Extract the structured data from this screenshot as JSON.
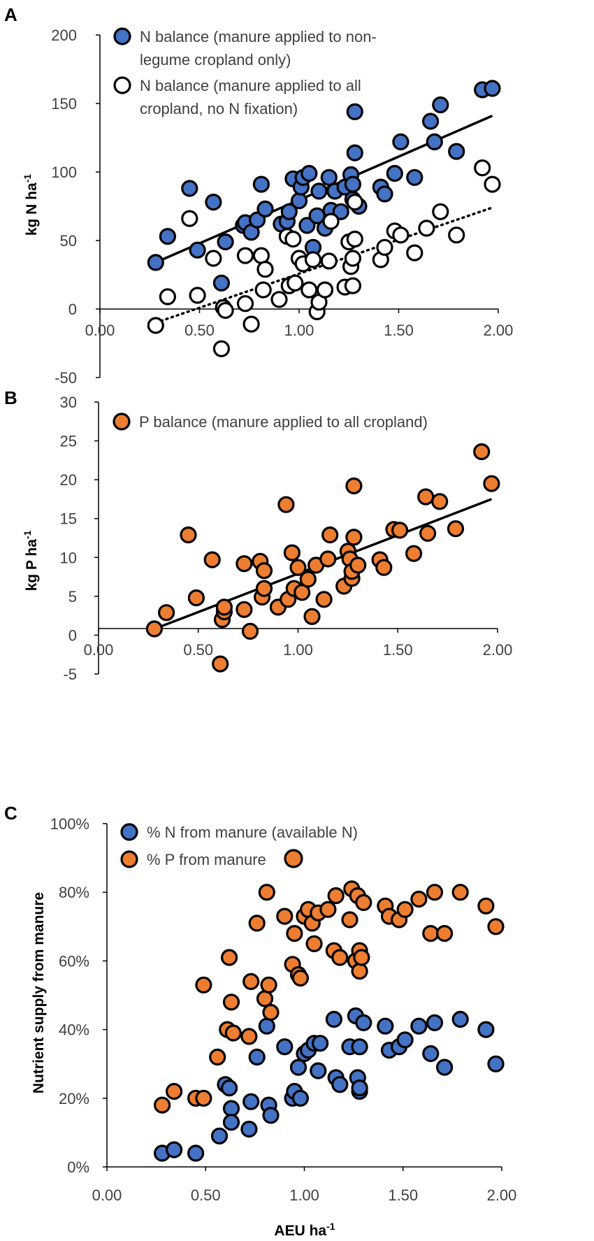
{
  "colors": {
    "n_blue": "#4472c4",
    "p_orange": "#ed7d31",
    "open_fill": "#ffffff",
    "marker_edge": "#000000",
    "trend": "#000000",
    "axis": "#000000"
  },
  "chart_data": [
    {
      "panel": "A",
      "type": "scatter",
      "title": "",
      "xlabel": "",
      "ylabel_main": "kg N ha",
      "ylabel_sup": "-1",
      "xlim": [
        0,
        2
      ],
      "ylim": [
        -50,
        200
      ],
      "yticks": [
        "200",
        "150",
        "100",
        "50",
        "0",
        "-50"
      ],
      "xticks": [
        "0.00",
        "0.50",
        "1.00",
        "1.50",
        "2.00"
      ],
      "legend": [
        {
          "lines": [
            "N balance (manure applied to non-",
            "legume cropland only)"
          ],
          "style": "filled-blue"
        },
        {
          "lines": [
            "N balance (manure applied to all",
            "cropland, no N fixation)"
          ],
          "style": "open"
        }
      ],
      "series": [
        {
          "name": "N balance (manure applied to non-legume cropland only)",
          "style": "filled-blue",
          "trendline": {
            "kind": "solid",
            "x": [
              0.28,
              1.97
            ],
            "y": [
              34,
              141
            ]
          },
          "points": [
            [
              0.28,
              34
            ],
            [
              0.34,
              53
            ],
            [
              0.45,
              88
            ],
            [
              0.49,
              43
            ],
            [
              0.57,
              78
            ],
            [
              0.61,
              19
            ],
            [
              0.63,
              49
            ],
            [
              0.72,
              61
            ],
            [
              0.73,
              63
            ],
            [
              0.76,
              56
            ],
            [
              0.79,
              65
            ],
            [
              0.81,
              91
            ],
            [
              0.83,
              73
            ],
            [
              0.91,
              62
            ],
            [
              0.94,
              64
            ],
            [
              0.95,
              71
            ],
            [
              0.97,
              95
            ],
            [
              1.0,
              79
            ],
            [
              1.01,
              89
            ],
            [
              1.02,
              96
            ],
            [
              1.04,
              61
            ],
            [
              1.05,
              99
            ],
            [
              1.07,
              45
            ],
            [
              1.09,
              68
            ],
            [
              1.1,
              86
            ],
            [
              1.13,
              59
            ],
            [
              1.15,
              96
            ],
            [
              1.16,
              72
            ],
            [
              1.18,
              86
            ],
            [
              1.21,
              71
            ],
            [
              1.23,
              89
            ],
            [
              1.26,
              98
            ],
            [
              1.27,
              91
            ],
            [
              1.27,
              80
            ],
            [
              1.28,
              114
            ],
            [
              1.28,
              144
            ],
            [
              1.3,
              75
            ],
            [
              1.41,
              89
            ],
            [
              1.43,
              84
            ],
            [
              1.48,
              99
            ],
            [
              1.51,
              122
            ],
            [
              1.58,
              96
            ],
            [
              1.66,
              137
            ],
            [
              1.68,
              122
            ],
            [
              1.71,
              149
            ],
            [
              1.79,
              115
            ],
            [
              1.92,
              160
            ],
            [
              1.97,
              161
            ]
          ]
        },
        {
          "name": "N balance (manure applied to all cropland, no N fixation)",
          "style": "open",
          "trendline": {
            "kind": "dotted",
            "x": [
              0.28,
              1.97
            ],
            "y": [
              -10,
              74
            ]
          },
          "points": [
            [
              0.28,
              -12
            ],
            [
              0.34,
              9
            ],
            [
              0.45,
              66
            ],
            [
              0.49,
              10
            ],
            [
              0.57,
              37
            ],
            [
              0.61,
              -29
            ],
            [
              0.62,
              1
            ],
            [
              0.63,
              -1
            ],
            [
              0.73,
              39
            ],
            [
              0.73,
              4
            ],
            [
              0.76,
              -11
            ],
            [
              0.81,
              39
            ],
            [
              0.82,
              14
            ],
            [
              0.83,
              29
            ],
            [
              0.9,
              7
            ],
            [
              0.94,
              53
            ],
            [
              0.95,
              17
            ],
            [
              0.97,
              51
            ],
            [
              0.98,
              19
            ],
            [
              1.0,
              37
            ],
            [
              1.02,
              33
            ],
            [
              1.05,
              14
            ],
            [
              1.07,
              36
            ],
            [
              1.09,
              -2
            ],
            [
              1.1,
              5
            ],
            [
              1.13,
              14
            ],
            [
              1.15,
              35
            ],
            [
              1.16,
              64
            ],
            [
              1.23,
              16
            ],
            [
              1.25,
              49
            ],
            [
              1.26,
              31
            ],
            [
              1.27,
              37
            ],
            [
              1.27,
              17
            ],
            [
              1.28,
              51
            ],
            [
              1.28,
              78
            ],
            [
              1.41,
              36
            ],
            [
              1.43,
              45
            ],
            [
              1.48,
              57
            ],
            [
              1.51,
              54
            ],
            [
              1.58,
              41
            ],
            [
              1.64,
              59
            ],
            [
              1.71,
              71
            ],
            [
              1.79,
              54
            ],
            [
              1.92,
              103
            ],
            [
              1.97,
              91
            ]
          ]
        }
      ]
    },
    {
      "panel": "B",
      "type": "scatter",
      "title": "",
      "xlabel": "",
      "ylabel_main": "kg P ha",
      "ylabel_sup": "-1",
      "xlim": [
        0,
        2
      ],
      "ylim": [
        -5,
        30
      ],
      "yticks": [
        "30",
        "25",
        "20",
        "15",
        "10",
        "5",
        "0",
        "-5"
      ],
      "xticks": [
        "0.00",
        "0.50",
        "1.00",
        "1.50",
        "2.00"
      ],
      "legend": [
        {
          "lines": [
            "P balance (manure applied to all cropland)"
          ],
          "style": "filled-orange"
        }
      ],
      "series": [
        {
          "name": "P balance (manure applied to all cropland)",
          "style": "filled-orange",
          "trendline": {
            "kind": "solid",
            "x": [
              0.28,
              1.97
            ],
            "y": [
              0.8,
              17.5
            ]
          },
          "points": [
            [
              0.28,
              0.8
            ],
            [
              0.34,
              2.9
            ],
            [
              0.45,
              12.9
            ],
            [
              0.49,
              4.8
            ],
            [
              0.57,
              9.7
            ],
            [
              0.61,
              -3.7
            ],
            [
              0.62,
              2.0
            ],
            [
              0.63,
              3.0
            ],
            [
              0.63,
              3.6
            ],
            [
              0.73,
              3.3
            ],
            [
              0.73,
              9.2
            ],
            [
              0.76,
              0.5
            ],
            [
              0.81,
              9.5
            ],
            [
              0.82,
              4.9
            ],
            [
              0.83,
              6.0
            ],
            [
              0.83,
              8.3
            ],
            [
              0.9,
              3.6
            ],
            [
              0.94,
              16.8
            ],
            [
              0.95,
              4.6
            ],
            [
              0.97,
              10.6
            ],
            [
              0.98,
              6.0
            ],
            [
              1.0,
              8.7
            ],
            [
              1.02,
              5.5
            ],
            [
              1.05,
              7.2
            ],
            [
              1.07,
              2.4
            ],
            [
              1.09,
              9.0
            ],
            [
              1.13,
              4.6
            ],
            [
              1.15,
              9.8
            ],
            [
              1.16,
              12.9
            ],
            [
              1.23,
              6.3
            ],
            [
              1.25,
              10.8
            ],
            [
              1.26,
              9.8
            ],
            [
              1.27,
              7.3
            ],
            [
              1.27,
              8.2
            ],
            [
              1.28,
              12.6
            ],
            [
              1.28,
              19.2
            ],
            [
              1.3,
              9.0
            ],
            [
              1.41,
              9.7
            ],
            [
              1.43,
              8.7
            ],
            [
              1.48,
              13.6
            ],
            [
              1.51,
              13.5
            ],
            [
              1.58,
              10.5
            ],
            [
              1.64,
              17.8
            ],
            [
              1.65,
              13.1
            ],
            [
              1.71,
              17.2
            ],
            [
              1.79,
              13.7
            ],
            [
              1.92,
              23.6
            ],
            [
              1.97,
              19.5
            ]
          ]
        }
      ]
    },
    {
      "panel": "C",
      "type": "scatter",
      "title": "",
      "xlabel_main": "AEU ha",
      "xlabel_sup": "-1",
      "ylabel": "Nutrient supply from manure",
      "xlim": [
        0,
        2
      ],
      "ylim": [
        0,
        100
      ],
      "yticks": [
        "100%",
        "80%",
        "60%",
        "40%",
        "20%",
        "0%"
      ],
      "xticks": [
        "0.00",
        "0.50",
        "1.00",
        "1.50",
        "2.00"
      ],
      "legend": [
        {
          "lines": [
            "% N from manure (available N)"
          ],
          "style": "filled-blue"
        },
        {
          "lines": [
            "% P from manure"
          ],
          "style": "filled-orange"
        }
      ],
      "series": [
        {
          "name": "% N from manure (available N)",
          "style": "filled-blue",
          "points": [
            [
              0.28,
              4
            ],
            [
              0.34,
              5
            ],
            [
              0.45,
              4
            ],
            [
              0.57,
              9
            ],
            [
              0.6,
              24
            ],
            [
              0.62,
              23
            ],
            [
              0.63,
              17
            ],
            [
              0.63,
              13
            ],
            [
              0.72,
              11
            ],
            [
              0.73,
              19
            ],
            [
              0.76,
              32
            ],
            [
              0.81,
              41
            ],
            [
              0.82,
              18
            ],
            [
              0.83,
              15
            ],
            [
              0.9,
              35
            ],
            [
              0.94,
              20
            ],
            [
              0.95,
              22
            ],
            [
              0.97,
              29
            ],
            [
              0.98,
              20
            ],
            [
              1.0,
              33
            ],
            [
              1.02,
              34
            ],
            [
              1.05,
              36
            ],
            [
              1.07,
              28
            ],
            [
              1.08,
              36
            ],
            [
              1.15,
              43
            ],
            [
              1.16,
              26
            ],
            [
              1.18,
              24
            ],
            [
              1.23,
              35
            ],
            [
              1.26,
              44
            ],
            [
              1.27,
              26
            ],
            [
              1.28,
              22
            ],
            [
              1.28,
              23
            ],
            [
              1.28,
              35
            ],
            [
              1.3,
              42
            ],
            [
              1.41,
              41
            ],
            [
              1.43,
              34
            ],
            [
              1.48,
              35
            ],
            [
              1.51,
              37
            ],
            [
              1.58,
              41
            ],
            [
              1.64,
              33
            ],
            [
              1.66,
              42
            ],
            [
              1.71,
              29
            ],
            [
              1.79,
              43
            ],
            [
              1.92,
              40
            ],
            [
              1.97,
              30
            ]
          ]
        },
        {
          "name": "% P from manure",
          "style": "filled-orange",
          "points": [
            [
              0.28,
              18
            ],
            [
              0.34,
              22
            ],
            [
              0.45,
              20
            ],
            [
              0.49,
              20
            ],
            [
              0.49,
              53
            ],
            [
              0.56,
              32
            ],
            [
              0.61,
              40
            ],
            [
              0.62,
              61
            ],
            [
              0.63,
              48
            ],
            [
              0.64,
              39
            ],
            [
              0.72,
              38
            ],
            [
              0.73,
              54
            ],
            [
              0.76,
              71
            ],
            [
              0.8,
              49
            ],
            [
              0.81,
              80
            ],
            [
              0.82,
              53
            ],
            [
              0.83,
              45
            ],
            [
              0.9,
              73
            ],
            [
              0.94,
              59
            ],
            [
              0.95,
              68
            ],
            [
              0.97,
              56
            ],
            [
              0.98,
              55
            ],
            [
              1.0,
              73
            ],
            [
              1.02,
              75
            ],
            [
              1.04,
              71
            ],
            [
              1.05,
              65
            ],
            [
              1.07,
              74
            ],
            [
              1.12,
              75
            ],
            [
              1.15,
              63
            ],
            [
              1.16,
              79
            ],
            [
              1.18,
              61
            ],
            [
              1.23,
              72
            ],
            [
              1.24,
              81
            ],
            [
              1.26,
              60
            ],
            [
              1.27,
              79
            ],
            [
              1.28,
              63
            ],
            [
              1.28,
              57
            ],
            [
              1.29,
              61
            ],
            [
              1.3,
              77
            ],
            [
              1.41,
              76
            ],
            [
              1.43,
              73
            ],
            [
              1.48,
              72
            ],
            [
              1.51,
              75
            ],
            [
              1.58,
              78
            ],
            [
              1.64,
              68
            ],
            [
              1.66,
              80
            ],
            [
              1.71,
              68
            ],
            [
              1.79,
              80
            ],
            [
              1.92,
              76
            ],
            [
              1.97,
              70
            ]
          ]
        }
      ]
    }
  ]
}
